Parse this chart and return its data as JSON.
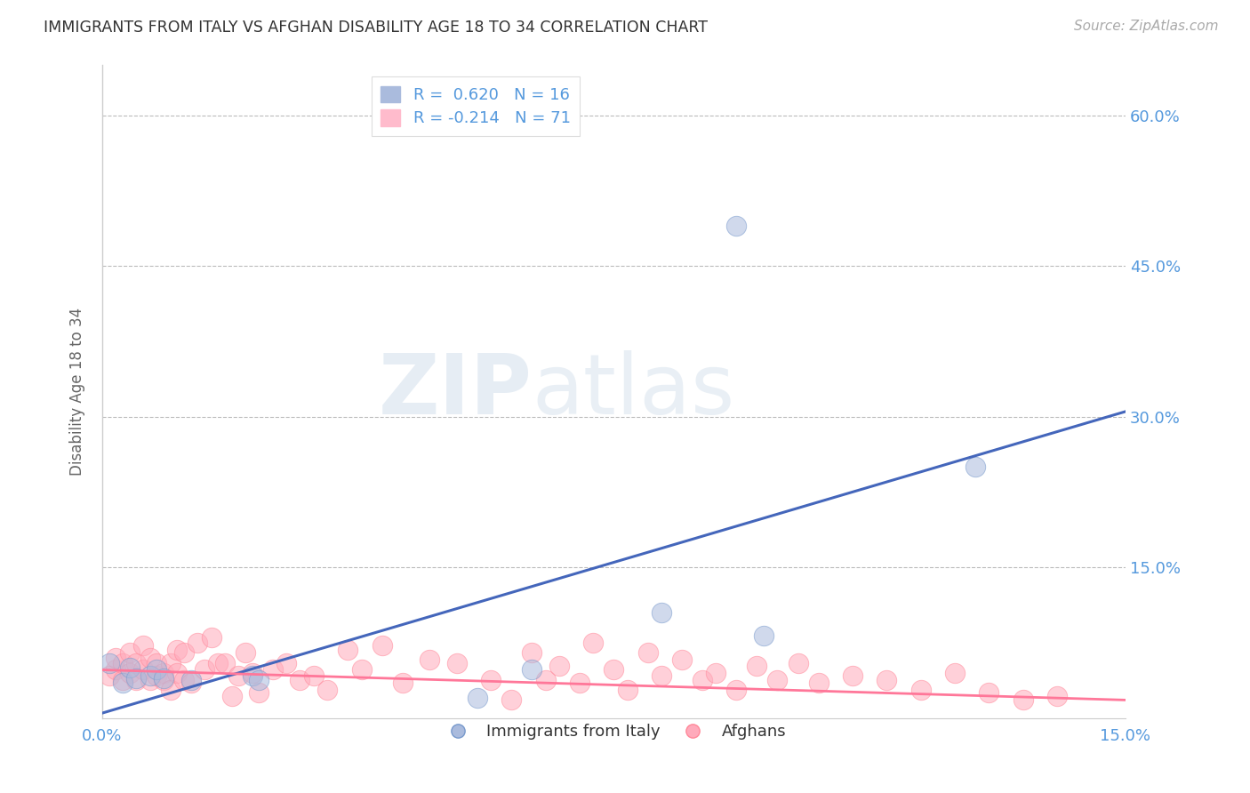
{
  "title": "IMMIGRANTS FROM ITALY VS AFGHAN DISABILITY AGE 18 TO 34 CORRELATION CHART",
  "source": "Source: ZipAtlas.com",
  "ylabel": "Disability Age 18 to 34",
  "xlim": [
    0.0,
    0.15
  ],
  "ylim": [
    0.0,
    0.65
  ],
  "watermark_zip": "ZIP",
  "watermark_atlas": "atlas",
  "legend_r1": "R =  0.620   N = 16",
  "legend_r2": "R = -0.214   N = 71",
  "legend_label1": "Immigrants from Italy",
  "legend_label2": "Afghans",
  "blue_fill": "#AABBDD",
  "blue_edge": "#7799CC",
  "blue_line": "#4466BB",
  "pink_fill": "#FFAABB",
  "pink_edge": "#FF8899",
  "pink_line": "#FF7799",
  "axis_color": "#5599DD",
  "grid_color": "#BBBBBB",
  "scatter_blue_x": [
    0.001,
    0.003,
    0.004,
    0.005,
    0.007,
    0.008,
    0.009,
    0.013,
    0.022,
    0.023,
    0.055,
    0.063,
    0.082,
    0.097,
    0.093,
    0.128
  ],
  "scatter_blue_y": [
    0.055,
    0.035,
    0.05,
    0.04,
    0.042,
    0.048,
    0.04,
    0.038,
    0.042,
    0.038,
    0.02,
    0.048,
    0.105,
    0.082,
    0.49,
    0.25
  ],
  "scatter_pink_x": [
    0.001,
    0.002,
    0.002,
    0.003,
    0.003,
    0.004,
    0.004,
    0.005,
    0.005,
    0.006,
    0.006,
    0.007,
    0.007,
    0.008,
    0.008,
    0.009,
    0.009,
    0.01,
    0.01,
    0.011,
    0.011,
    0.012,
    0.012,
    0.013,
    0.014,
    0.015,
    0.016,
    0.017,
    0.018,
    0.019,
    0.02,
    0.021,
    0.022,
    0.023,
    0.025,
    0.027,
    0.029,
    0.031,
    0.033,
    0.036,
    0.038,
    0.041,
    0.044,
    0.048,
    0.052,
    0.057,
    0.06,
    0.063,
    0.065,
    0.067,
    0.07,
    0.072,
    0.075,
    0.077,
    0.08,
    0.082,
    0.085,
    0.088,
    0.09,
    0.093,
    0.096,
    0.099,
    0.102,
    0.105,
    0.11,
    0.115,
    0.12,
    0.125,
    0.13,
    0.135,
    0.14
  ],
  "scatter_pink_y": [
    0.042,
    0.048,
    0.06,
    0.038,
    0.055,
    0.045,
    0.065,
    0.038,
    0.055,
    0.072,
    0.048,
    0.038,
    0.06,
    0.042,
    0.055,
    0.045,
    0.038,
    0.028,
    0.055,
    0.068,
    0.045,
    0.038,
    0.065,
    0.035,
    0.075,
    0.048,
    0.08,
    0.055,
    0.055,
    0.022,
    0.042,
    0.065,
    0.045,
    0.025,
    0.048,
    0.055,
    0.038,
    0.042,
    0.028,
    0.068,
    0.048,
    0.072,
    0.035,
    0.058,
    0.055,
    0.038,
    0.018,
    0.065,
    0.038,
    0.052,
    0.035,
    0.075,
    0.048,
    0.028,
    0.065,
    0.042,
    0.058,
    0.038,
    0.045,
    0.028,
    0.052,
    0.038,
    0.055,
    0.035,
    0.042,
    0.038,
    0.028,
    0.045,
    0.025,
    0.018,
    0.022
  ],
  "blue_trend_x": [
    0.0,
    0.15
  ],
  "blue_trend_y": [
    0.005,
    0.305
  ],
  "pink_trend_x": [
    0.0,
    0.15
  ],
  "pink_trend_y": [
    0.048,
    0.018
  ],
  "ytick_vals": [
    0.15,
    0.3,
    0.45,
    0.6
  ],
  "ytick_labels": [
    "15.0%",
    "30.0%",
    "45.0%",
    "60.0%"
  ],
  "xtick_vals": [
    0.0,
    0.15
  ],
  "xtick_labels": [
    "0.0%",
    "15.0%"
  ]
}
